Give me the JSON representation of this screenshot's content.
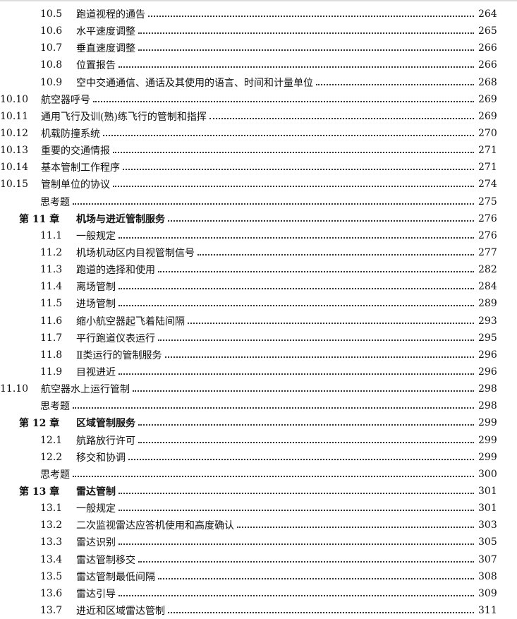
{
  "entries": [
    {
      "type": "sec",
      "num": "10.5",
      "title": "跑道视程的通告",
      "page": "264"
    },
    {
      "type": "sec",
      "num": "10.6",
      "title": "水平速度调整",
      "page": "265"
    },
    {
      "type": "sec",
      "num": "10.7",
      "title": "垂直速度调整",
      "page": "266"
    },
    {
      "type": "sec",
      "num": "10.8",
      "title": "位置报告",
      "page": "266"
    },
    {
      "type": "sec",
      "num": "10.9",
      "title": "空中交通通信、通话及其使用的语言、时间和计量单位",
      "page": "268"
    },
    {
      "type": "sec2",
      "num": "10.10",
      "title": "航空器呼号",
      "page": "269"
    },
    {
      "type": "sec2",
      "num": "10.11",
      "title": "通用飞行及训(熟)练飞行的管制和指挥",
      "page": "269"
    },
    {
      "type": "sec2",
      "num": "10.12",
      "title": "机载防撞系统",
      "page": "270"
    },
    {
      "type": "sec2",
      "num": "10.13",
      "title": "重要的交通情报",
      "page": "271"
    },
    {
      "type": "sec2",
      "num": "10.14",
      "title": "基本管制工作程序",
      "page": "271"
    },
    {
      "type": "sec2",
      "num": "10.15",
      "title": "管制单位的协议",
      "page": "274"
    },
    {
      "type": "q",
      "num": "",
      "title": "思考题",
      "page": "275"
    },
    {
      "type": "ch",
      "num": "第 11 章",
      "title": "机场与进近管制服务",
      "page": "276"
    },
    {
      "type": "sec",
      "num": "11.1",
      "title": "一般规定",
      "page": "276"
    },
    {
      "type": "sec",
      "num": "11.2",
      "title": "机场机动区内目视管制信号",
      "page": "277"
    },
    {
      "type": "sec",
      "num": "11.3",
      "title": "跑道的选择和使用",
      "page": "282"
    },
    {
      "type": "sec",
      "num": "11.4",
      "title": "离场管制",
      "page": "284"
    },
    {
      "type": "sec",
      "num": "11.5",
      "title": "进场管制",
      "page": "289"
    },
    {
      "type": "sec",
      "num": "11.6",
      "title": "缩小航空器起飞着陆间隔",
      "page": "293"
    },
    {
      "type": "sec",
      "num": "11.7",
      "title": "平行跑道仪表运行",
      "page": "295"
    },
    {
      "type": "sec",
      "num": "11.8",
      "title": "Ⅱ类运行的管制服务",
      "page": "296"
    },
    {
      "type": "sec",
      "num": "11.9",
      "title": "目视进近",
      "page": "296"
    },
    {
      "type": "sec2",
      "num": "11.10",
      "title": "航空器水上运行管制",
      "page": "298"
    },
    {
      "type": "q",
      "num": "",
      "title": "思考题",
      "page": "298"
    },
    {
      "type": "ch",
      "num": "第 12 章",
      "title": "区域管制服务",
      "page": "299"
    },
    {
      "type": "sec",
      "num": "12.1",
      "title": "航路放行许可",
      "page": "299"
    },
    {
      "type": "sec",
      "num": "12.2",
      "title": "移交和协调",
      "page": "299"
    },
    {
      "type": "q",
      "num": "",
      "title": "思考题",
      "page": "300"
    },
    {
      "type": "ch",
      "num": "第 13 章",
      "title": "雷达管制",
      "page": "301"
    },
    {
      "type": "sec",
      "num": "13.1",
      "title": "一般规定",
      "page": "301"
    },
    {
      "type": "sec",
      "num": "13.2",
      "title": "二次监视雷达应答机使用和高度确认",
      "page": "303"
    },
    {
      "type": "sec",
      "num": "13.3",
      "title": "雷达识别",
      "page": "305"
    },
    {
      "type": "sec",
      "num": "13.4",
      "title": "雷达管制移交",
      "page": "307"
    },
    {
      "type": "sec",
      "num": "13.5",
      "title": "雷达管制最低间隔",
      "page": "308"
    },
    {
      "type": "sec",
      "num": "13.6",
      "title": "雷达引导",
      "page": "309"
    },
    {
      "type": "sec",
      "num": "13.7",
      "title": "进近和区域雷达管制",
      "page": "311"
    }
  ]
}
